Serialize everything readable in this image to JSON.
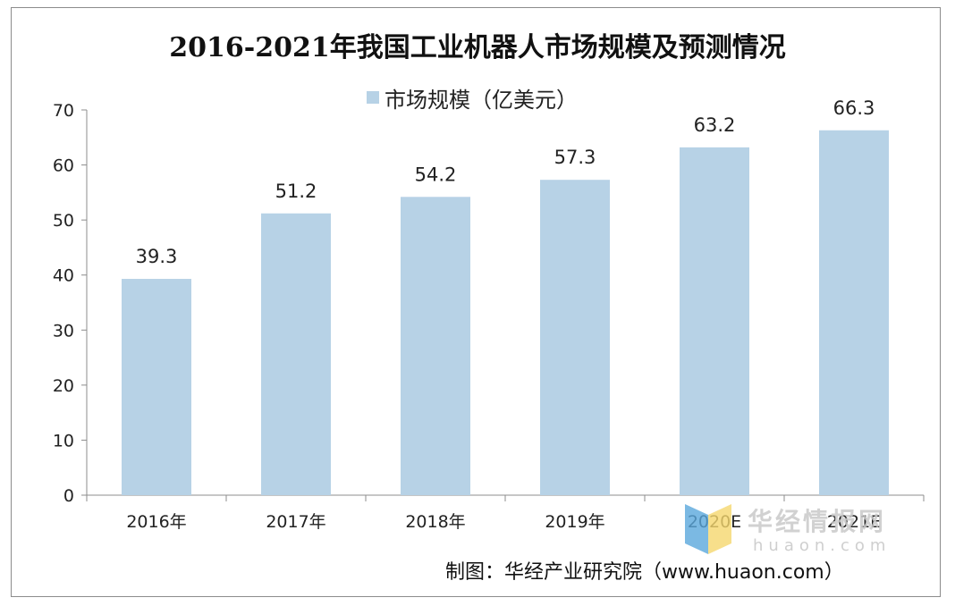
{
  "title": "2016-2021年我国工业机器人市场规模及预测情况",
  "source": "制图：华经产业研究院（www.huaon.com）",
  "watermark": {
    "name": "华经情报网",
    "domain": "huaon.com"
  },
  "colors": {
    "bar": "#b7d2e6",
    "axis": "#8c8c8c",
    "text": "#222222"
  },
  "chart_data": {
    "type": "bar",
    "categories": [
      "2016年",
      "2017年",
      "2018年",
      "2019年",
      "2020E",
      "2021E"
    ],
    "series": [
      {
        "name": "市场规模（亿美元）",
        "values": [
          39.3,
          51.2,
          54.2,
          57.3,
          63.2,
          66.3
        ]
      }
    ],
    "data_labels": [
      "39.3",
      "51.2",
      "54.2",
      "57.3",
      "63.2",
      "66.3"
    ],
    "yticks": [
      "0",
      "10",
      "20",
      "30",
      "40",
      "50",
      "60",
      "70"
    ],
    "ylim": [
      0,
      70
    ],
    "legend_position": "top-center",
    "grid": false
  }
}
